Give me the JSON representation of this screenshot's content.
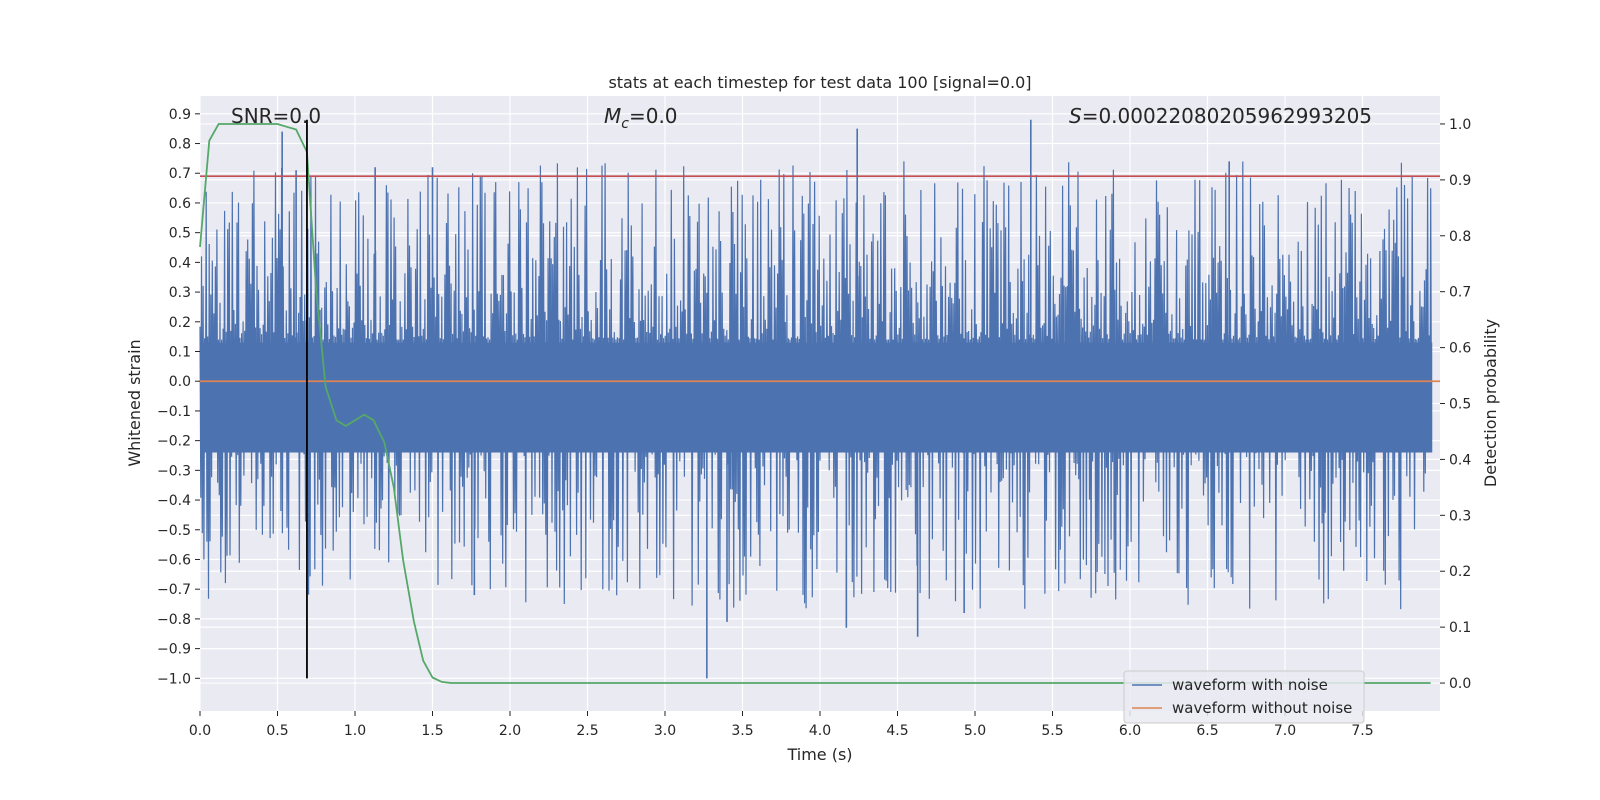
{
  "chart_data": {
    "type": "line",
    "title": "stats at each timestep for test data 100 [signal=0.0]",
    "xlabel": "Time (s)",
    "ylabel_left": "Whitened strain",
    "ylabel_right": "Detection probability",
    "xlim": [
      0.0,
      8.0
    ],
    "ylim_left": [
      -1.11,
      0.96
    ],
    "ylim_right": [
      -0.05,
      1.05
    ],
    "x_ticks": [
      "0.0",
      "0.5",
      "1.0",
      "1.5",
      "2.0",
      "2.5",
      "3.0",
      "3.5",
      "4.0",
      "4.5",
      "5.0",
      "5.5",
      "6.0",
      "6.5",
      "7.0",
      "7.5"
    ],
    "x_tick_values": [
      0.0,
      0.5,
      1.0,
      1.5,
      2.0,
      2.5,
      3.0,
      3.5,
      4.0,
      4.5,
      5.0,
      5.5,
      6.0,
      6.5,
      7.0,
      7.5
    ],
    "y_left_ticks": [
      "0.9",
      "0.8",
      "0.7",
      "0.6",
      "0.5",
      "0.4",
      "0.3",
      "0.2",
      "0.1",
      "0.0",
      "−0.1",
      "−0.2",
      "−0.3",
      "−0.4",
      "−0.5",
      "−0.6",
      "−0.7",
      "−0.8",
      "−0.9",
      "−1.0"
    ],
    "y_left_tick_values": [
      0.9,
      0.8,
      0.7,
      0.6,
      0.5,
      0.4,
      0.3,
      0.2,
      0.1,
      0.0,
      -0.1,
      -0.2,
      -0.3,
      -0.4,
      -0.5,
      -0.6,
      -0.7,
      -0.8,
      -0.9,
      -1.0
    ],
    "y_right_ticks": [
      "1.0",
      "0.9",
      "0.8",
      "0.7",
      "0.6",
      "0.5",
      "0.4",
      "0.3",
      "0.2",
      "0.1",
      "0.0"
    ],
    "y_right_tick_values": [
      1.0,
      0.9,
      0.8,
      0.7,
      0.6,
      0.5,
      0.4,
      0.3,
      0.2,
      0.1,
      0.0
    ],
    "grid": true,
    "annotations": {
      "snr": "SNR=0.0",
      "mc": "M",
      "mc_sub": "c",
      "mc_value": "=0.0",
      "s": "S",
      "s_value": "=0.00022080205962993205"
    },
    "threshold_line": {
      "y_left": 0.69,
      "color": "#c44e52"
    },
    "vertical_marker": {
      "x": 0.69,
      "y_from": -1.0,
      "y_to": 0.88,
      "color": "#000000"
    },
    "noise_envelope": {
      "description_series": "waveform with noise",
      "upper_typical": 0.35,
      "lower_typical": -0.45,
      "notable_peaks": [
        [
          0.53,
          0.84
        ],
        [
          0.62,
          0.71
        ],
        [
          1.13,
          0.72
        ],
        [
          1.5,
          0.72
        ],
        [
          4.24,
          0.85
        ],
        [
          5.36,
          0.88
        ],
        [
          6.64,
          0.74
        ]
      ],
      "notable_troughs": [
        [
          3.27,
          -1.0
        ],
        [
          3.4,
          -0.81
        ],
        [
          4.17,
          -0.83
        ],
        [
          4.63,
          -0.86
        ],
        [
          4.93,
          -0.78
        ],
        [
          1.77,
          -0.72
        ]
      ]
    },
    "series": [
      {
        "name": "waveform with noise",
        "color": "#4c72b0",
        "axis": "left"
      },
      {
        "name": "waveform without noise",
        "color": "#dd8452",
        "axis": "left",
        "x": [
          0.0,
          8.0
        ],
        "values": [
          0.0,
          0.0
        ]
      },
      {
        "name": "detection probability",
        "color": "#55a868",
        "axis": "right",
        "x": [
          0.0,
          0.06,
          0.12,
          0.19,
          0.25,
          0.31,
          0.38,
          0.44,
          0.5,
          0.56,
          0.62,
          0.69,
          0.75,
          0.81,
          0.88,
          0.94,
          1.0,
          1.06,
          1.12,
          1.19,
          1.25,
          1.31,
          1.38,
          1.44,
          1.5,
          1.56,
          1.62,
          1.69,
          2.0,
          3.0,
          4.0,
          5.0,
          6.0,
          7.0,
          7.94
        ],
        "values": [
          0.78,
          0.97,
          1.0,
          1.0,
          1.0,
          1.0,
          1.0,
          1.0,
          1.0,
          0.995,
          0.99,
          0.95,
          0.7,
          0.53,
          0.47,
          0.46,
          0.47,
          0.48,
          0.47,
          0.43,
          0.35,
          0.22,
          0.11,
          0.04,
          0.01,
          0.002,
          0.0,
          0.0,
          0.0,
          0.0,
          0.0,
          0.0,
          0.0,
          0.0,
          0.0
        ]
      }
    ],
    "legend": {
      "position": "lower-right",
      "entries": [
        {
          "label": "waveform with noise",
          "color": "#4c72b0"
        },
        {
          "label": "waveform without noise",
          "color": "#dd8452"
        }
      ]
    }
  }
}
